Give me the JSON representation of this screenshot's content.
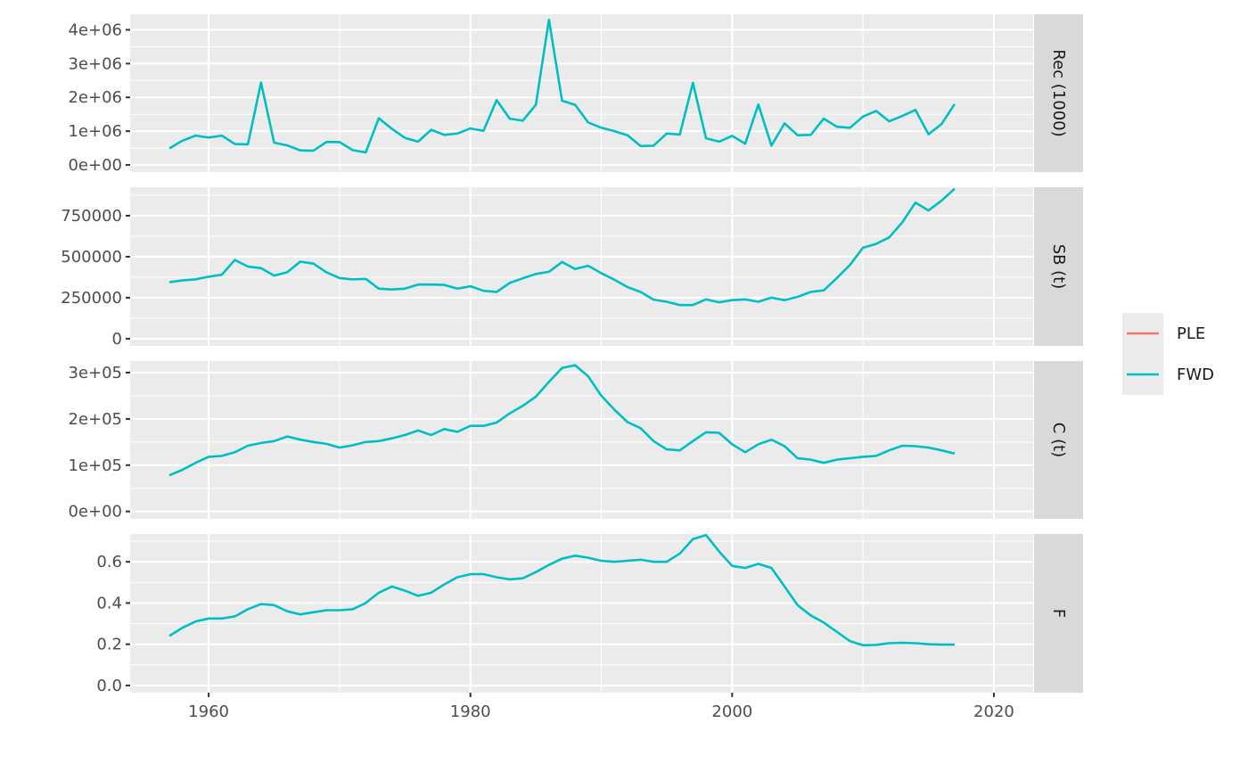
{
  "chart_data": {
    "type": "line",
    "layout": "faceted",
    "x_axis": {
      "range": [
        1954,
        2023
      ],
      "ticks": [
        1960,
        1980,
        2000,
        2020
      ],
      "tick_labels": [
        "1960",
        "1980",
        "2000",
        "2020"
      ],
      "minor_ticks": [
        1950,
        1970,
        1990,
        2010
      ],
      "label": ""
    },
    "legend": {
      "position": "right",
      "title": "",
      "entries": [
        {
          "name": "PLE",
          "color": "#F8766D"
        },
        {
          "name": "FWD",
          "color": "#00BFC4"
        }
      ]
    },
    "grid": true,
    "x": [
      1957,
      1958,
      1959,
      1960,
      1961,
      1962,
      1963,
      1964,
      1965,
      1966,
      1967,
      1968,
      1969,
      1970,
      1971,
      1972,
      1973,
      1974,
      1975,
      1976,
      1977,
      1978,
      1979,
      1980,
      1981,
      1982,
      1983,
      1984,
      1985,
      1986,
      1987,
      1988,
      1989,
      1990,
      1991,
      1992,
      1993,
      1994,
      1995,
      1996,
      1997,
      1998,
      1999,
      2000,
      2001,
      2002,
      2003,
      2004,
      2005,
      2006,
      2007,
      2008,
      2009,
      2010,
      2011,
      2012,
      2013,
      2014,
      2015,
      2016,
      2017
    ],
    "facets": [
      {
        "label": "Rec (1000)",
        "ylim": [
          -210000.0,
          4460000.0
        ],
        "yticks": [
          0,
          1000000,
          2000000,
          3000000,
          4000000
        ],
        "ytick_labels": [
          "0e+00",
          "1e+06",
          "2e+06",
          "3e+06",
          "4e+06"
        ],
        "series": [
          {
            "name": "FWD",
            "values": [
              490000,
              720000,
              870000,
              810000,
              870000,
              620000,
              610000,
              2440000,
              660000,
              580000,
              430000,
              420000,
              680000,
              680000,
              440000,
              370000,
              1380000,
              1070000,
              800000,
              690000,
              1040000,
              890000,
              930000,
              1080000,
              1010000,
              1920000,
              1370000,
              1310000,
              1780000,
              4300000,
              1900000,
              1780000,
              1260000,
              1100000,
              1000000,
              880000,
              560000,
              570000,
              930000,
              900000,
              2430000,
              790000,
              690000,
              860000,
              630000,
              1790000,
              570000,
              1230000,
              880000,
              890000,
              1370000,
              1130000,
              1100000,
              1430000,
              1600000,
              1290000,
              1450000,
              1630000,
              910000,
              1210000,
              1800000
            ]
          },
          {
            "name": "PLE",
            "values": []
          }
        ]
      },
      {
        "label": "SB (t)",
        "ylim": [
          -44000,
          924000
        ],
        "yticks": [
          0,
          250000,
          500000,
          750000
        ],
        "ytick_labels": [
          "0",
          "250000",
          "500000",
          "750000"
        ],
        "series": [
          {
            "name": "FWD",
            "values": [
              345000,
              355000,
              362000,
              378000,
              390000,
              480000,
              440000,
              430000,
              385000,
              405000,
              470000,
              458000,
              405000,
              370000,
              362000,
              365000,
              305000,
              300000,
              305000,
              330000,
              330000,
              328000,
              305000,
              320000,
              292000,
              285000,
              340000,
              368000,
              395000,
              408000,
              468000,
              425000,
              445000,
              400000,
              360000,
              315000,
              285000,
              238000,
              225000,
              205000,
              205000,
              240000,
              222000,
              235000,
              240000,
              225000,
              250000,
              235000,
              255000,
              285000,
              295000,
              370000,
              450000,
              555000,
              578000,
              618000,
              710000,
              830000,
              782000,
              842000,
              915000
            ]
          },
          {
            "name": "PLE",
            "values": []
          }
        ]
      },
      {
        "label": "C (t)",
        "ylim": [
          -16000,
          325000
        ],
        "yticks": [
          0,
          100000,
          200000,
          300000
        ],
        "ytick_labels": [
          "0e+00",
          "1e+05",
          "2e+05",
          "3e+05"
        ],
        "series": [
          {
            "name": "FWD",
            "values": [
              78000,
              90000,
              105000,
              118000,
              120000,
              128000,
              142000,
              148000,
              152000,
              162000,
              155000,
              150000,
              146000,
              138000,
              143000,
              150000,
              152000,
              158000,
              165000,
              175000,
              165000,
              178000,
              172000,
              185000,
              185000,
              192000,
              212000,
              228000,
              248000,
              280000,
              310000,
              316000,
              292000,
              250000,
              220000,
              193000,
              180000,
              152000,
              134000,
              132000,
              152000,
              171000,
              170000,
              145000,
              128000,
              145000,
              155000,
              141000,
              115000,
              112000,
              105000,
              112000,
              115000,
              118000,
              120000,
              132000,
              142000,
              141000,
              138000,
              132000,
              125000
            ]
          },
          {
            "name": "PLE",
            "values": []
          }
        ]
      },
      {
        "label": "F",
        "ylim": [
          -0.035,
          0.735
        ],
        "yticks": [
          0.0,
          0.2,
          0.4,
          0.6
        ],
        "ytick_labels": [
          "0.0",
          "0.2",
          "0.4",
          "0.6"
        ],
        "series": [
          {
            "name": "FWD",
            "values": [
              0.24,
              0.28,
              0.31,
              0.325,
              0.325,
              0.335,
              0.37,
              0.395,
              0.39,
              0.36,
              0.345,
              0.355,
              0.365,
              0.365,
              0.37,
              0.4,
              0.45,
              0.48,
              0.46,
              0.435,
              0.45,
              0.49,
              0.525,
              0.54,
              0.54,
              0.525,
              0.515,
              0.52,
              0.55,
              0.585,
              0.615,
              0.63,
              0.62,
              0.605,
              0.6,
              0.605,
              0.61,
              0.6,
              0.6,
              0.64,
              0.71,
              0.73,
              0.65,
              0.58,
              0.57,
              0.59,
              0.57,
              0.48,
              0.39,
              0.34,
              0.305,
              0.26,
              0.215,
              0.195,
              0.197,
              0.205,
              0.207,
              0.205,
              0.2,
              0.198,
              0.198
            ]
          },
          {
            "name": "PLE",
            "values": []
          }
        ]
      }
    ]
  }
}
